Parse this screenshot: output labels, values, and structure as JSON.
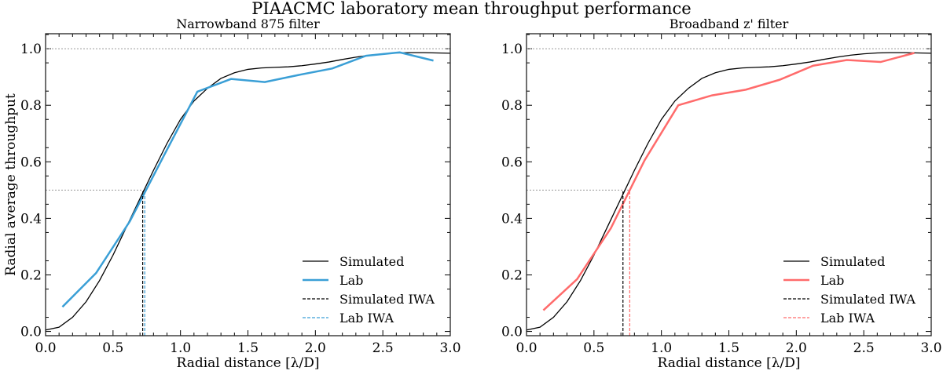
{
  "suptitle": "PIAACMC laboratory mean throughput performance",
  "chart_data": [
    {
      "type": "line",
      "title": "Narrowband 875 filter",
      "xlabel": "Radial distance [λ/D]",
      "ylabel": "Radial average throughput",
      "xlim": [
        0,
        3.0
      ],
      "ylim": [
        -0.015,
        1.053
      ],
      "xticks": [
        "0.0",
        "0.5",
        "1.0",
        "1.5",
        "2.0",
        "2.5",
        "3.0"
      ],
      "yticks": [
        "0.0",
        "0.2",
        "0.4",
        "0.6",
        "0.8",
        "1.0"
      ],
      "legend_position": "lower-right",
      "reference_lines": {
        "y_full": 1.0,
        "y_half": 0.5
      },
      "series": [
        {
          "name": "Simulated",
          "color": "#000000",
          "style": "solid",
          "x": [
            0,
            0.1,
            0.2,
            0.3,
            0.4,
            0.5,
            0.6,
            0.7,
            0.8,
            0.9,
            1.0,
            1.1,
            1.2,
            1.3,
            1.4,
            1.5,
            1.6,
            1.7,
            1.8,
            1.9,
            2.0,
            2.1,
            2.2,
            2.3,
            2.4,
            2.5,
            2.6,
            2.7,
            2.8,
            2.9,
            3.0
          ],
          "y": [
            0.005,
            0.015,
            0.05,
            0.105,
            0.18,
            0.27,
            0.37,
            0.47,
            0.57,
            0.665,
            0.75,
            0.815,
            0.86,
            0.895,
            0.915,
            0.927,
            0.932,
            0.934,
            0.936,
            0.94,
            0.946,
            0.953,
            0.962,
            0.97,
            0.977,
            0.982,
            0.985,
            0.986,
            0.986,
            0.985,
            0.984
          ]
        },
        {
          "name": "Lab",
          "color": "#3a9fd6",
          "style": "solid",
          "x": [
            0.125,
            0.375,
            0.625,
            0.875,
            1.125,
            1.375,
            1.625,
            1.875,
            2.125,
            2.375,
            2.625,
            2.875
          ],
          "y": [
            0.087,
            0.207,
            0.39,
            0.62,
            0.848,
            0.893,
            0.882,
            0.907,
            0.93,
            0.975,
            0.987,
            0.958
          ]
        },
        {
          "name": "Simulated IWA",
          "color": "#000000",
          "style": "dashed",
          "x_value": 0.72
        },
        {
          "name": "Lab IWA",
          "color": "#3a9fd6",
          "style": "dashed",
          "x_value": 0.735
        }
      ]
    },
    {
      "type": "line",
      "title": "Broadband z' filter",
      "xlabel": "Radial distance [λ/D]",
      "ylabel": "",
      "xlim": [
        0,
        3.0
      ],
      "ylim": [
        -0.015,
        1.053
      ],
      "xticks": [
        "0.0",
        "0.5",
        "1.0",
        "1.5",
        "2.0",
        "2.5",
        "3.0"
      ],
      "yticks": [
        "0.0",
        "0.2",
        "0.4",
        "0.6",
        "0.8",
        "1.0"
      ],
      "legend_position": "lower-right",
      "reference_lines": {
        "y_full": 1.0,
        "y_half": 0.5
      },
      "series": [
        {
          "name": "Simulated",
          "color": "#000000",
          "style": "solid",
          "x": [
            0,
            0.1,
            0.2,
            0.3,
            0.4,
            0.5,
            0.6,
            0.7,
            0.8,
            0.9,
            1.0,
            1.1,
            1.2,
            1.3,
            1.4,
            1.5,
            1.6,
            1.7,
            1.8,
            1.9,
            2.0,
            2.1,
            2.2,
            2.3,
            2.4,
            2.5,
            2.6,
            2.7,
            2.8,
            2.9,
            3.0
          ],
          "y": [
            0.005,
            0.015,
            0.05,
            0.105,
            0.18,
            0.27,
            0.37,
            0.47,
            0.57,
            0.665,
            0.75,
            0.815,
            0.86,
            0.895,
            0.915,
            0.927,
            0.932,
            0.934,
            0.936,
            0.94,
            0.946,
            0.953,
            0.962,
            0.97,
            0.977,
            0.982,
            0.985,
            0.986,
            0.986,
            0.985,
            0.984
          ]
        },
        {
          "name": "Lab",
          "color": "#ff6b6b",
          "style": "solid",
          "x": [
            0.125,
            0.375,
            0.625,
            0.875,
            1.125,
            1.375,
            1.625,
            1.875,
            2.125,
            2.375,
            2.625,
            2.875
          ],
          "y": [
            0.075,
            0.185,
            0.365,
            0.605,
            0.8,
            0.835,
            0.855,
            0.89,
            0.94,
            0.96,
            0.953,
            0.985
          ]
        },
        {
          "name": "Simulated IWA",
          "color": "#000000",
          "style": "dashed",
          "x_value": 0.715
        },
        {
          "name": "Lab IWA",
          "color": "#ff6b6b",
          "style": "dashed",
          "x_value": 0.765
        }
      ]
    }
  ]
}
